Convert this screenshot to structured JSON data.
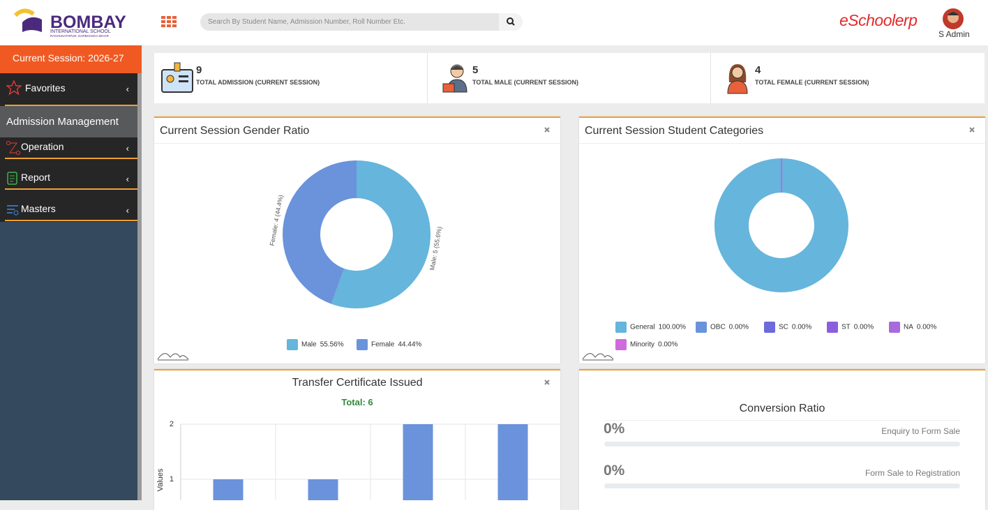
{
  "header": {
    "logo_title": "BOMBAY",
    "logo_subtitle": "INTERNATIONAL SCHOOL",
    "logo_address": "RAGHUNATHPUR, DARBHANGA-BIHAR",
    "search_placeholder": "Search By Student Name, Admission Number, Roll Number Etc.",
    "brand": "eSchoolerp",
    "user": "S Admin"
  },
  "sidebar": {
    "session": "Current Session: 2026-27",
    "favorites": "Favorites",
    "module": "Admission Management",
    "menu": [
      "Operation",
      "Report",
      "Masters"
    ]
  },
  "stats": [
    {
      "value": 9,
      "label": "TOTAL ADMISSION (CURRENT SESSION)"
    },
    {
      "value": 5,
      "label": "TOTAL MALE (CURRENT SESSION)"
    },
    {
      "value": 4,
      "label": "TOTAL FEMALE (CURRENT SESSION)"
    }
  ],
  "chart_data": [
    {
      "type": "donut",
      "title": "Current Session Gender Ratio",
      "categories": [
        "Male",
        "Female"
      ],
      "values": [
        5,
        4
      ],
      "value_labels": [
        "Male: 5 (55.6%)",
        "Female: 4 (44.4%)"
      ],
      "percent_labels": [
        "55.56%",
        "44.44%"
      ],
      "colors": [
        "#66b5dc",
        "#6a93dc"
      ]
    },
    {
      "type": "donut",
      "title": "Current Session Student Categories",
      "categories": [
        "General",
        "OBC",
        "SC",
        "ST",
        "NA",
        "Minority"
      ],
      "values": [
        100,
        0,
        0,
        0,
        0,
        0
      ],
      "percent_labels": [
        "100.00%",
        "0.00%",
        "0.00%",
        "0.00%",
        "0.00%",
        "0.00%"
      ],
      "colors": [
        "#66b5dc",
        "#6a93dc",
        "#6b6bdc",
        "#8b5fdc",
        "#a86bdc",
        "#d06bdc"
      ]
    },
    {
      "type": "bar",
      "title": "Transfer Certificate Issued",
      "subtitle": "Total: 6",
      "y_label": "Values",
      "categories": [
        null,
        null,
        null,
        null
      ],
      "values": [
        1,
        1,
        2,
        2
      ],
      "color": "#6a93dc",
      "ylim": [
        0,
        2
      ],
      "yticks": [
        1,
        2
      ],
      "grid": true
    }
  ],
  "conversion": {
    "title": "Conversion Ratio",
    "items": [
      {
        "value": "0%",
        "label": "Enquiry to Form Sale"
      },
      {
        "value": "0%",
        "label": "Form Sale to Registration"
      }
    ]
  }
}
